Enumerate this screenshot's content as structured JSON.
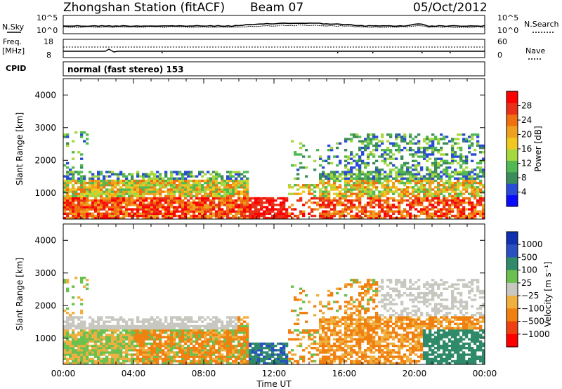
{
  "header": {
    "station": "Zhongshan Station (fitACF)",
    "beam": "Beam 07",
    "date": "05/Oct/2012"
  },
  "top_panels": {
    "nsky_label": "N.Sky",
    "nsearch_label": "N.Search",
    "noise_ticks_left": [
      "10^5",
      "10^0"
    ],
    "noise_ticks_right": [
      "10^5",
      "10^0"
    ],
    "freq_label_line1": "Freq.",
    "freq_label_line2": "[MHz]",
    "freq_ticks": [
      "18",
      "8"
    ],
    "nave_label": "Nave",
    "nave_ticks": [
      "60",
      "0"
    ],
    "cpid_label": "CPID",
    "cpid_text": "normal (fast stereo) 153"
  },
  "chart_data": [
    {
      "type": "heatmap",
      "name": "power",
      "ylabel": "Slant Range [km]",
      "yticks": [
        "1000",
        "2000",
        "3000",
        "4000"
      ],
      "ylim": [
        200,
        4500
      ],
      "colorbar": {
        "label": "Power [dB]",
        "ticks": [
          "4",
          "8",
          "12",
          "16",
          "20",
          "24",
          "28"
        ],
        "colors": [
          "#0a0aff",
          "#2a4bd6",
          "#3c8c5a",
          "#52b852",
          "#a8d840",
          "#f0c820",
          "#f0a020",
          "#f07010",
          "#e83018",
          "#ff0000"
        ]
      }
    },
    {
      "type": "heatmap",
      "name": "velocity",
      "ylabel": "Slant Range [km]",
      "yticks": [
        "1000",
        "2000",
        "3000",
        "4000"
      ],
      "ylim": [
        200,
        4500
      ],
      "colorbar": {
        "label": "Velocity [m s⁻¹]",
        "ticks": [
          "1000",
          "500",
          "100",
          "25",
          "−25",
          "−100",
          "−500",
          "−1000"
        ],
        "colors": [
          "#1030b0",
          "#2850c0",
          "#2f8a6a",
          "#6cc050",
          "#c8c8c0",
          "#f0b040",
          "#f08010",
          "#ee4010",
          "#ff0000"
        ]
      }
    }
  ],
  "x_axis": {
    "ticks": [
      "00:00",
      "04:00",
      "08:00",
      "12:00",
      "16:00",
      "20:00",
      "00:00"
    ],
    "label": "Time UT"
  }
}
